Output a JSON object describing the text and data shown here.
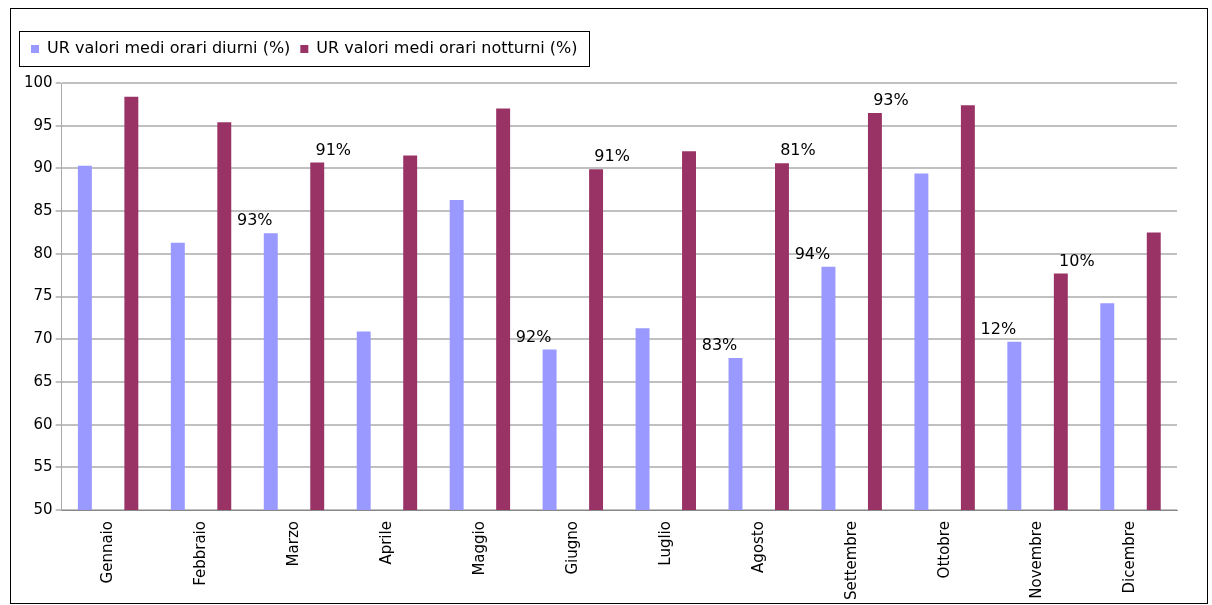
{
  "chart_data": {
    "type": "bar",
    "categories": [
      "Gennaio",
      "Febbraio",
      "Marzo",
      "Aprile",
      "Maggio",
      "Giugno",
      "Luglio",
      "Agosto",
      "Settembre",
      "Ottobre",
      "Novembre",
      "Dicembre"
    ],
    "series": [
      {
        "name": "UR valori medi orari diurni (%)",
        "color": "#9999ff",
        "values": [
          90.3,
          81.3,
          82.4,
          70.9,
          86.3,
          68.8,
          71.3,
          67.8,
          78.5,
          89.4,
          69.7,
          74.2
        ]
      },
      {
        "name": "UR valori medi orari notturni (%)",
        "color": "#993366",
        "values": [
          98.4,
          95.4,
          90.7,
          91.5,
          97.0,
          89.9,
          92.0,
          90.6,
          96.5,
          97.4,
          77.7,
          82.5
        ]
      }
    ],
    "annotations": [
      "93%",
      "91%",
      "92%",
      "91%",
      "83%",
      "81%",
      "94%",
      "93%",
      "12%",
      "10%"
    ],
    "ylim": [
      50,
      100
    ],
    "yticks": [
      50,
      55,
      60,
      65,
      70,
      75,
      80,
      85,
      90,
      95,
      100
    ],
    "grid": "y",
    "legend": "top"
  }
}
